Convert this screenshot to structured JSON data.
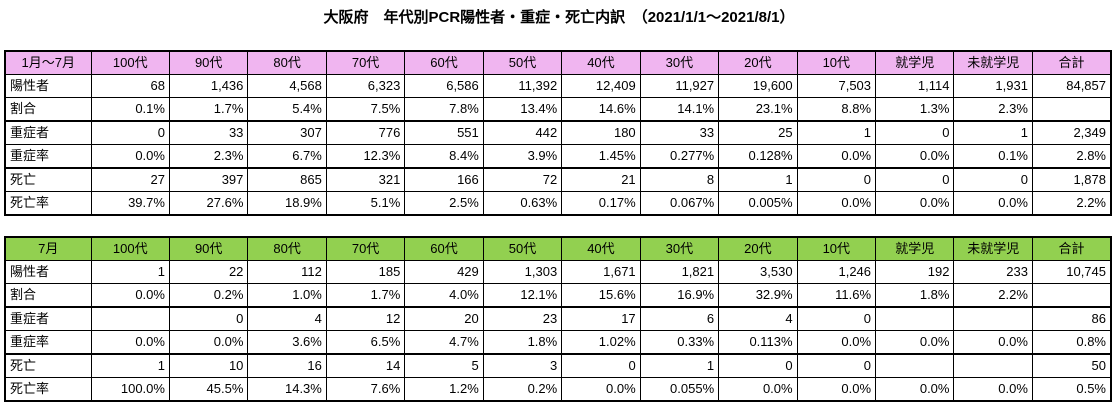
{
  "title": "大阪府　年代別PCR陽性者・重症・死亡内訳　（2021/1/1～2021/8/1）",
  "colors": {
    "background": "#ffffff",
    "text": "#000000",
    "border": "#000000",
    "table1_header_bg": "#f0b5f0",
    "table2_header_bg": "#92d050"
  },
  "tables": [
    {
      "period_label": "1月～7月",
      "columns": [
        "100代",
        "90代",
        "80代",
        "70代",
        "60代",
        "50代",
        "40代",
        "30代",
        "20代",
        "10代",
        "就学児",
        "未就学児",
        "合計"
      ],
      "rows": [
        {
          "label": "陽性者",
          "values": [
            "68",
            "1,436",
            "4,568",
            "6,323",
            "6,586",
            "11,392",
            "12,409",
            "11,927",
            "19,600",
            "7,503",
            "1,114",
            "1,931",
            "84,857"
          ]
        },
        {
          "label": "割合",
          "values": [
            "0.1%",
            "1.7%",
            "5.4%",
            "7.5%",
            "7.8%",
            "13.4%",
            "14.6%",
            "14.1%",
            "23.1%",
            "8.8%",
            "1.3%",
            "2.3%",
            ""
          ]
        },
        {
          "label": "重症者",
          "values": [
            "0",
            "33",
            "307",
            "776",
            "551",
            "442",
            "180",
            "33",
            "25",
            "1",
            "0",
            "1",
            "2,349"
          ]
        },
        {
          "label": "重症率",
          "values": [
            "0.0%",
            "2.3%",
            "6.7%",
            "12.3%",
            "8.4%",
            "3.9%",
            "1.45%",
            "0.277%",
            "0.128%",
            "0.0%",
            "0.0%",
            "0.1%",
            "2.8%"
          ]
        },
        {
          "label": "死亡",
          "values": [
            "27",
            "397",
            "865",
            "321",
            "166",
            "72",
            "21",
            "8",
            "1",
            "0",
            "0",
            "0",
            "1,878"
          ]
        },
        {
          "label": "死亡率",
          "values": [
            "39.7%",
            "27.6%",
            "18.9%",
            "5.1%",
            "2.5%",
            "0.63%",
            "0.17%",
            "0.067%",
            "0.005%",
            "0.0%",
            "0.0%",
            "0.0%",
            "2.2%"
          ]
        }
      ]
    },
    {
      "period_label": "7月",
      "columns": [
        "100代",
        "90代",
        "80代",
        "70代",
        "60代",
        "50代",
        "40代",
        "30代",
        "20代",
        "10代",
        "就学児",
        "未就学児",
        "合計"
      ],
      "rows": [
        {
          "label": "陽性者",
          "values": [
            "1",
            "22",
            "112",
            "185",
            "429",
            "1,303",
            "1,671",
            "1,821",
            "3,530",
            "1,246",
            "192",
            "233",
            "10,745"
          ]
        },
        {
          "label": "割合",
          "values": [
            "0.0%",
            "0.2%",
            "1.0%",
            "1.7%",
            "4.0%",
            "12.1%",
            "15.6%",
            "16.9%",
            "32.9%",
            "11.6%",
            "1.8%",
            "2.2%",
            ""
          ]
        },
        {
          "label": "重症者",
          "values": [
            "",
            "0",
            "4",
            "12",
            "20",
            "23",
            "17",
            "6",
            "4",
            "0",
            "",
            "",
            "86"
          ]
        },
        {
          "label": "重症率",
          "values": [
            "0.0%",
            "0.0%",
            "3.6%",
            "6.5%",
            "4.7%",
            "1.8%",
            "1.02%",
            "0.33%",
            "0.113%",
            "0.0%",
            "0.0%",
            "0.0%",
            "0.8%"
          ]
        },
        {
          "label": "死亡",
          "values": [
            "1",
            "10",
            "16",
            "14",
            "5",
            "3",
            "0",
            "1",
            "0",
            "0",
            "",
            "",
            "50"
          ]
        },
        {
          "label": "死亡率",
          "values": [
            "100.0%",
            "45.5%",
            "14.3%",
            "7.6%",
            "1.2%",
            "0.2%",
            "0.0%",
            "0.055%",
            "0.0%",
            "0.0%",
            "0.0%",
            "0.0%",
            "0.5%"
          ]
        }
      ]
    }
  ]
}
